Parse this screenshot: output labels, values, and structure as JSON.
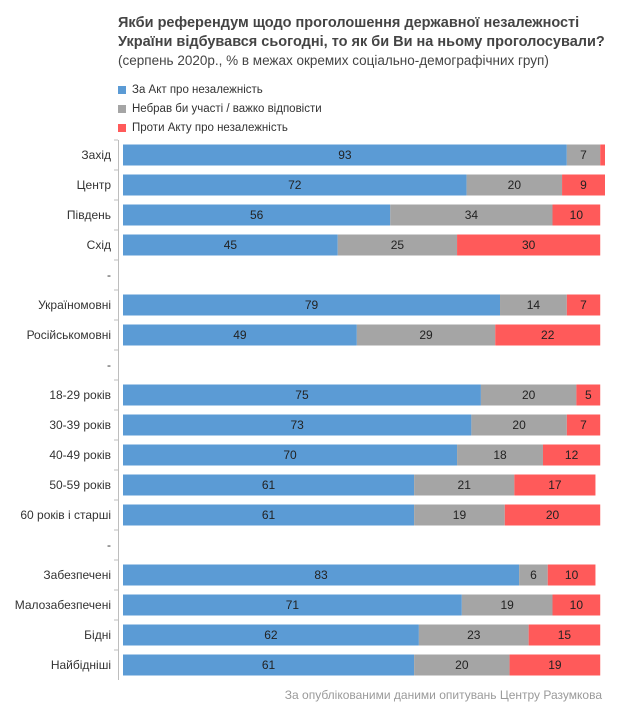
{
  "chart_data": {
    "type": "bar",
    "orientation": "horizontal",
    "stacked": true,
    "title": "Якби референдум щодо проголошення державної незалежності України відбувався сьогодні, то як би Ви на ньому проголосували?",
    "title_line1": "Якби референдум щодо проголошення державної незалежності",
    "title_line2": "України відбувався сьогодні, то як би Ви на ньому проголосували?",
    "subtitle": "(серпень 2020р.,  % в межах окремих соціально-демографічних груп)",
    "categories": [
      "Захід",
      "Центр",
      "Південь",
      "Схід",
      "-",
      "Україномовні",
      "Російськомовні",
      "-",
      "18-29  років",
      "30-39 років",
      "40-49 років",
      "50-59 років",
      "60  років і старші",
      "-",
      "Забезпечені",
      "Малозабезпечені",
      "Бідні",
      "Найбідніші"
    ],
    "series": [
      {
        "name": "За Акт про незалежність",
        "color": "#5b9bd5",
        "values": [
          93,
          72,
          56,
          45,
          null,
          79,
          49,
          null,
          75,
          73,
          70,
          61,
          61,
          null,
          83,
          71,
          62,
          61
        ]
      },
      {
        "name": "Небрав би участі / важко відповісти",
        "color": "#a5a5a5",
        "values": [
          7,
          20,
          34,
          25,
          null,
          14,
          29,
          null,
          20,
          20,
          18,
          21,
          19,
          null,
          6,
          19,
          23,
          20
        ]
      },
      {
        "name": "Проти Акту про незалежність",
        "color": "#ff5a5a",
        "values": [
          1,
          9,
          10,
          30,
          null,
          7,
          22,
          null,
          5,
          7,
          12,
          17,
          20,
          null,
          10,
          10,
          15,
          19
        ]
      }
    ],
    "labels": [
      [
        "93",
        "7",
        ""
      ],
      [
        "72",
        "20",
        "9"
      ],
      [
        "56",
        "34",
        "10"
      ],
      [
        "45",
        "25",
        "30"
      ],
      null,
      [
        "79",
        "14",
        "7"
      ],
      [
        "49",
        "29",
        "22"
      ],
      null,
      [
        "75",
        "20",
        "5"
      ],
      [
        "73",
        "20",
        "7"
      ],
      [
        "70",
        "18",
        "12"
      ],
      [
        "61",
        "21",
        "17"
      ],
      [
        "61",
        "19",
        "20"
      ],
      null,
      [
        "83",
        "6",
        "10"
      ],
      [
        "71",
        "19",
        "10"
      ],
      [
        "62",
        "23",
        "15"
      ],
      [
        "61",
        "20",
        "19"
      ]
    ],
    "xlim": [
      0,
      101
    ],
    "legend_position": "top-left",
    "grid": false
  },
  "source": "За опублікованими  даними опитувань  Центру  Разумкова"
}
